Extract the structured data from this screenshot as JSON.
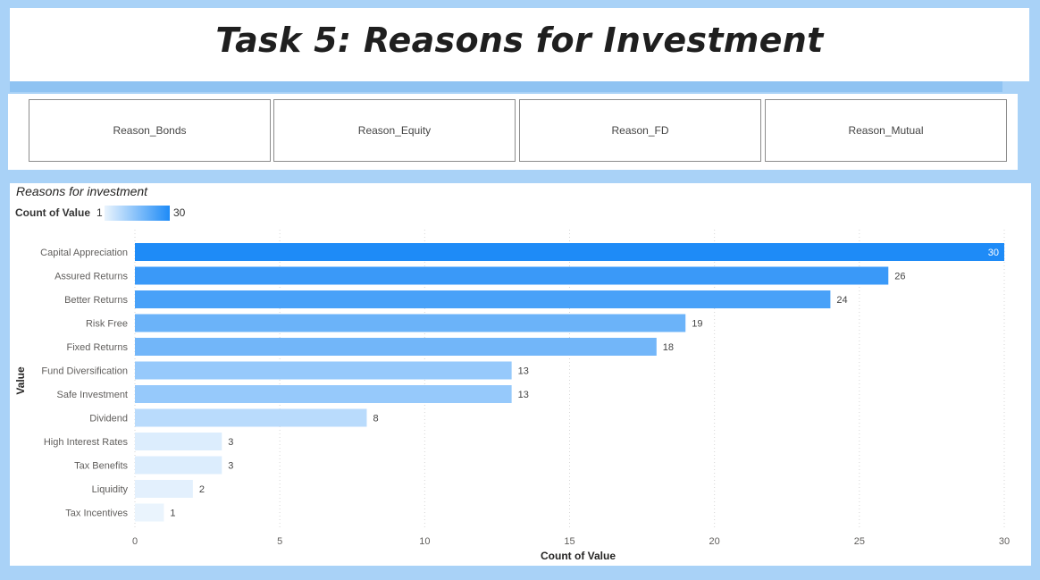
{
  "page_title": "Task 5: Reasons for Investment",
  "slicer": {
    "tiles": [
      "Reason_Bonds",
      "Reason_Equity",
      "Reason_FD",
      "Reason_Mutual"
    ]
  },
  "chart_data": {
    "type": "bar",
    "orientation": "horizontal",
    "title": "Reasons for investment",
    "legend": {
      "title": "Count of Value",
      "min": "1",
      "max": "30",
      "placement": "top-left"
    },
    "categories": [
      "Capital Appreciation",
      "Assured Returns",
      "Better Returns",
      "Risk Free",
      "Fixed Returns",
      "Fund Diversification",
      "Safe Investment",
      "Dividend",
      "High Interest Rates",
      "Tax Benefits",
      "Liquidity",
      "Tax Incentives"
    ],
    "values": [
      30,
      26,
      24,
      19,
      18,
      13,
      13,
      8,
      3,
      3,
      2,
      1
    ],
    "xlabel": "Count of Value",
    "ylabel": "Value",
    "xlim": [
      0,
      30
    ],
    "xticks": [
      0,
      5,
      10,
      15,
      20,
      25,
      30
    ],
    "grid": "vertical dotted",
    "colors": {
      "low": "#eaf4fd",
      "high": "#1e8bf7"
    }
  }
}
